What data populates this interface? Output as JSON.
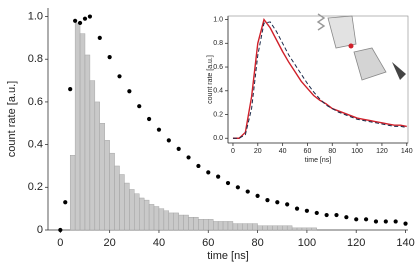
{
  "chart_data": [
    {
      "type": "combo",
      "xlabel": "time [ns]",
      "ylabel": "count rate [a.u.]",
      "xlim": [
        -5,
        141
      ],
      "ylim": [
        0,
        1.04
      ],
      "xticks": [
        0,
        20,
        40,
        60,
        80,
        100,
        120,
        140
      ],
      "yticks": [
        0,
        0.2,
        0.4,
        0.6,
        0.8,
        {
          "value": 1,
          "label": "1.0"
        }
      ],
      "series": [
        {
          "type": "histogram",
          "color": "#c9c9c9",
          "bins": [
            4,
            6,
            8,
            10,
            12,
            14,
            16,
            18,
            20,
            22,
            24,
            26,
            28,
            30,
            32,
            34,
            36,
            38,
            40,
            42,
            44,
            46,
            48,
            50,
            52,
            54,
            56,
            58,
            60,
            62,
            64,
            66,
            68,
            70,
            72,
            74,
            76,
            78,
            80,
            82,
            84,
            86,
            88,
            90,
            92,
            94,
            96,
            98,
            100,
            102,
            104
          ],
          "values": [
            0.35,
            0.97,
            0.92,
            0.82,
            0.7,
            0.6,
            0.5,
            0.42,
            0.36,
            0.3,
            0.26,
            0.22,
            0.19,
            0.17,
            0.15,
            0.14,
            0.12,
            0.11,
            0.1,
            0.09,
            0.08,
            0.08,
            0.07,
            0.07,
            0.06,
            0.06,
            0.05,
            0.05,
            0.05,
            0.04,
            0.04,
            0.04,
            0.04,
            0.03,
            0.03,
            0.03,
            0.03,
            0.03,
            0.02,
            0.02,
            0.02,
            0.02,
            0.02,
            0.02,
            0.02,
            0.01,
            0.01,
            0.01,
            0.01,
            0.01
          ]
        },
        {
          "type": "scatter",
          "color": "#000000",
          "x": [
            0,
            2,
            4,
            6,
            8,
            10,
            12,
            16,
            20,
            24,
            28,
            32,
            36,
            40,
            44,
            48,
            52,
            56,
            60,
            64,
            68,
            72,
            76,
            80,
            84,
            88,
            92,
            96,
            100,
            104,
            108,
            112,
            116,
            120,
            124,
            128,
            132,
            136,
            140
          ],
          "values": [
            0,
            0.13,
            0.66,
            0.98,
            0.97,
            0.99,
            1.0,
            0.9,
            0.81,
            0.72,
            0.65,
            0.58,
            0.52,
            0.47,
            0.42,
            0.38,
            0.34,
            0.3,
            0.27,
            0.25,
            0.22,
            0.2,
            0.18,
            0.16,
            0.14,
            0.13,
            0.12,
            0.1,
            0.09,
            0.08,
            0.07,
            0.07,
            0.06,
            0.05,
            0.05,
            0.04,
            0.04,
            0.04,
            0.03
          ]
        }
      ]
    },
    {
      "type": "line",
      "xlabel": "time [ns]",
      "ylabel": "count rate [a.u.]",
      "xlim": [
        -4,
        141
      ],
      "ylim": [
        -0.04,
        1.03
      ],
      "xticks": [
        0,
        20,
        40,
        60,
        80,
        100,
        120,
        140
      ],
      "yticks": [
        {
          "value": 0,
          "label": "0.0"
        },
        0.2,
        0.4,
        0.6,
        0.8,
        {
          "value": 1,
          "label": "1.0"
        }
      ],
      "x": [
        0,
        5,
        10,
        15,
        20,
        25,
        30,
        35,
        40,
        45,
        50,
        55,
        60,
        65,
        70,
        75,
        80,
        85,
        90,
        95,
        100,
        105,
        110,
        115,
        120,
        125,
        130,
        135,
        140
      ],
      "series": [
        {
          "color": "#d0202a",
          "dashed": false,
          "values": [
            0,
            0,
            0.05,
            0.35,
            0.8,
            1.0,
            0.93,
            0.83,
            0.73,
            0.64,
            0.56,
            0.48,
            0.42,
            0.36,
            0.32,
            0.29,
            0.25,
            0.23,
            0.21,
            0.19,
            0.17,
            0.16,
            0.15,
            0.14,
            0.13,
            0.12,
            0.11,
            0.11,
            0.1
          ]
        },
        {
          "color": "#1a2a4a",
          "dashed": true,
          "values": [
            0,
            0,
            0.03,
            0.25,
            0.7,
            0.97,
            0.98,
            0.9,
            0.8,
            0.7,
            0.62,
            0.54,
            0.46,
            0.39,
            0.33,
            0.28,
            0.25,
            0.22,
            0.2,
            0.18,
            0.16,
            0.15,
            0.14,
            0.13,
            0.12,
            0.11,
            0.1,
            0.1,
            0.09
          ]
        }
      ]
    }
  ]
}
